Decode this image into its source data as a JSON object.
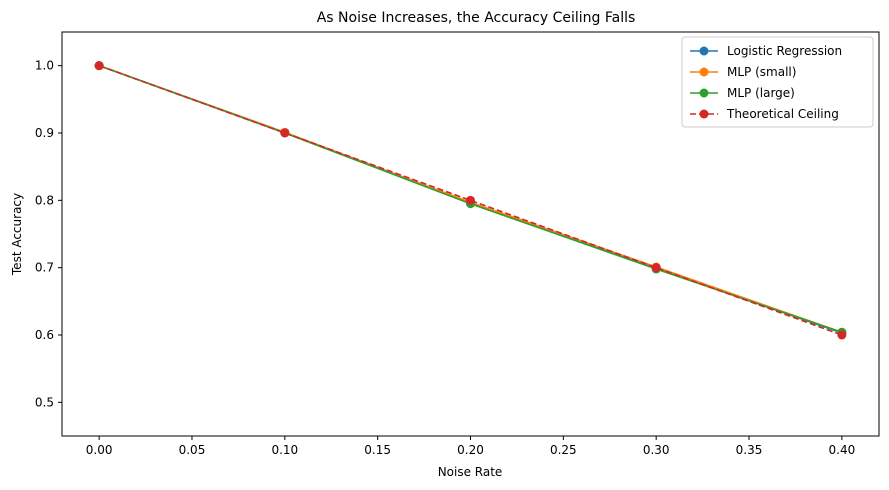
{
  "chart_data": {
    "type": "line",
    "title": "As Noise Increases, the Accuracy Ceiling Falls",
    "xlabel": "Noise Rate",
    "ylabel": "Test Accuracy",
    "x": [
      0.0,
      0.1,
      0.2,
      0.3,
      0.4
    ],
    "xlim": [
      -0.02,
      0.42
    ],
    "ylim": [
      0.45,
      1.05
    ],
    "xticks": [
      "0.00",
      "0.05",
      "0.10",
      "0.15",
      "0.20",
      "0.25",
      "0.30",
      "0.35",
      "0.40"
    ],
    "xtick_values": [
      0.0,
      0.05,
      0.1,
      0.15,
      0.2,
      0.25,
      0.3,
      0.35,
      0.4
    ],
    "yticks": [
      "0.5",
      "0.6",
      "0.7",
      "0.8",
      "0.9",
      "1.0"
    ],
    "ytick_values": [
      0.5,
      0.6,
      0.7,
      0.8,
      0.9,
      1.0
    ],
    "grid": false,
    "legend_position": "top-right",
    "series": [
      {
        "name": "Logistic Regression",
        "values": [
          1.0,
          0.901,
          0.796,
          0.699,
          0.603
        ],
        "color": "#1f77b4",
        "style": "solid"
      },
      {
        "name": "MLP (small)",
        "values": [
          1.0,
          0.901,
          0.797,
          0.701,
          0.604
        ],
        "color": "#ff7f0e",
        "style": "solid"
      },
      {
        "name": "MLP (large)",
        "values": [
          1.0,
          0.9,
          0.795,
          0.698,
          0.604
        ],
        "color": "#2ca02c",
        "style": "solid"
      },
      {
        "name": "Theoretical Ceiling",
        "values": [
          1.0,
          0.9,
          0.8,
          0.7,
          0.6
        ],
        "color": "#d62728",
        "style": "dashed"
      }
    ]
  }
}
